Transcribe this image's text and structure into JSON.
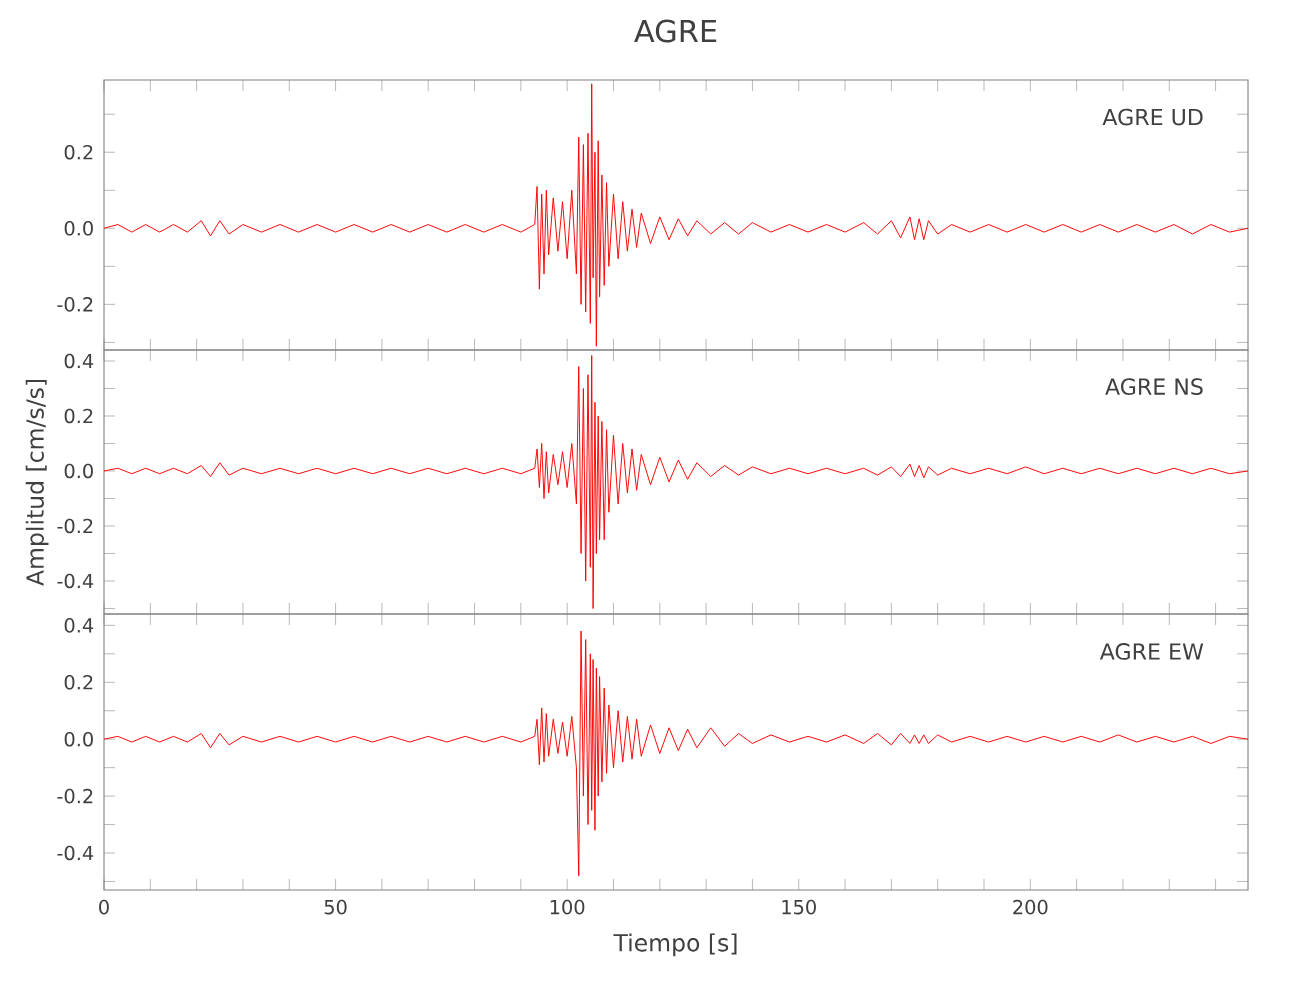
{
  "chart_data": [
    {
      "type": "line",
      "title": "AGRE",
      "annotations": [
        "AGRE UD"
      ],
      "tick_labels": "y",
      "xlim": [
        0,
        247
      ],
      "ylim": [
        -0.32,
        0.39
      ],
      "xticks": [
        0,
        {
          "value": 10,
          "label": null
        },
        {
          "value": 20,
          "label": null
        },
        {
          "value": 30,
          "label": null
        },
        {
          "value": 40,
          "label": null
        },
        50,
        {
          "value": 60,
          "label": null
        },
        {
          "value": 70,
          "label": null
        },
        {
          "value": 80,
          "label": null
        },
        {
          "value": 90,
          "label": null
        },
        100,
        {
          "value": 110,
          "label": null
        },
        {
          "value": 120,
          "label": null
        },
        {
          "value": 130,
          "label": null
        },
        {
          "value": 140,
          "label": null
        },
        150,
        {
          "value": 160,
          "label": null
        },
        {
          "value": 170,
          "label": null
        },
        {
          "value": 180,
          "label": null
        },
        {
          "value": 190,
          "label": null
        },
        200,
        {
          "value": 210,
          "label": null
        },
        {
          "value": 220,
          "label": null
        },
        {
          "value": 230,
          "label": null
        },
        {
          "value": 240,
          "label": null
        }
      ],
      "yticks": [
        {
          "value": -0.3,
          "label": null
        },
        -0.2,
        {
          "value": -0.1,
          "label": null
        },
        {
          "value": 0,
          "label": "0.0"
        },
        {
          "value": 0.1,
          "label": null
        },
        0.2,
        {
          "value": 0.3,
          "label": null
        }
      ],
      "series": [
        {
          "color": "#ff0000",
          "x": [
            0,
            3,
            6,
            9,
            12,
            15,
            18,
            21,
            23,
            25,
            27,
            30,
            34,
            38,
            42,
            46,
            50,
            54,
            58,
            62,
            66,
            70,
            74,
            78,
            82,
            86,
            90,
            93,
            93.5,
            94,
            94.5,
            95,
            95.5,
            96,
            97,
            98,
            99,
            100,
            101,
            102,
            102.5,
            103,
            103.5,
            104,
            104.5,
            105,
            105.3,
            105.6,
            106,
            106.3,
            106.7,
            107,
            107.5,
            108,
            108.5,
            109,
            110,
            111,
            112,
            113,
            114,
            115,
            116,
            118,
            120,
            122,
            124,
            126,
            128,
            131,
            134,
            137,
            140,
            144,
            148,
            152,
            156,
            160,
            164,
            167,
            170,
            172,
            174,
            175,
            176,
            177,
            178,
            180,
            183,
            187,
            191,
            195,
            199,
            203,
            207,
            211,
            215,
            219,
            223,
            227,
            231,
            235,
            239,
            243,
            247
          ],
          "values": [
            0,
            0.01,
            -0.01,
            0.01,
            -0.01,
            0.01,
            -0.01,
            0.02,
            -0.02,
            0.02,
            -0.015,
            0.01,
            -0.01,
            0.01,
            -0.01,
            0.01,
            -0.01,
            0.01,
            -0.01,
            0.01,
            -0.01,
            0.01,
            -0.01,
            0.01,
            -0.01,
            0.01,
            -0.01,
            0.01,
            0.11,
            -0.16,
            0.09,
            -0.12,
            0.1,
            -0.07,
            0.08,
            -0.06,
            0.07,
            -0.08,
            0.1,
            -0.12,
            0.24,
            -0.2,
            0.22,
            -0.22,
            0.25,
            -0.25,
            0.38,
            -0.13,
            0.2,
            -0.31,
            0.23,
            -0.18,
            0.14,
            -0.15,
            0.12,
            -0.1,
            0.09,
            -0.08,
            0.07,
            -0.06,
            0.05,
            -0.05,
            0.04,
            -0.04,
            0.03,
            -0.03,
            0.025,
            -0.02,
            0.02,
            -0.015,
            0.015,
            -0.015,
            0.015,
            -0.01,
            0.01,
            -0.01,
            0.01,
            -0.01,
            0.015,
            -0.015,
            0.02,
            -0.025,
            0.03,
            -0.03,
            0.025,
            -0.03,
            0.02,
            -0.015,
            0.01,
            -0.01,
            0.01,
            -0.01,
            0.01,
            -0.01,
            0.01,
            -0.01,
            0.01,
            -0.01,
            0.01,
            -0.01,
            0.01,
            -0.015,
            0.01,
            -0.01,
            0
          ]
        }
      ]
    },
    {
      "type": "line",
      "ylabel": "Amplitud [cm/s/s]",
      "annotations": [
        "AGRE NS"
      ],
      "tick_labels": "y",
      "xlim": [
        0,
        247
      ],
      "ylim": [
        -0.52,
        0.44
      ],
      "xticks": [
        0,
        {
          "value": 10,
          "label": null
        },
        {
          "value": 20,
          "label": null
        },
        {
          "value": 30,
          "label": null
        },
        {
          "value": 40,
          "label": null
        },
        50,
        {
          "value": 60,
          "label": null
        },
        {
          "value": 70,
          "label": null
        },
        {
          "value": 80,
          "label": null
        },
        {
          "value": 90,
          "label": null
        },
        100,
        {
          "value": 110,
          "label": null
        },
        {
          "value": 120,
          "label": null
        },
        {
          "value": 130,
          "label": null
        },
        {
          "value": 140,
          "label": null
        },
        150,
        {
          "value": 160,
          "label": null
        },
        {
          "value": 170,
          "label": null
        },
        {
          "value": 180,
          "label": null
        },
        {
          "value": 190,
          "label": null
        },
        200,
        {
          "value": 210,
          "label": null
        },
        {
          "value": 220,
          "label": null
        },
        {
          "value": 230,
          "label": null
        },
        {
          "value": 240,
          "label": null
        }
      ],
      "yticks": [
        {
          "value": -0.5,
          "label": null
        },
        -0.4,
        {
          "value": -0.3,
          "label": null
        },
        -0.2,
        {
          "value": -0.1,
          "label": null
        },
        {
          "value": 0,
          "label": "0.0"
        },
        {
          "value": 0.1,
          "label": null
        },
        0.2,
        {
          "value": 0.3,
          "label": null
        },
        0.4
      ],
      "series": [
        {
          "color": "#ff0000",
          "x": [
            0,
            3,
            6,
            9,
            12,
            15,
            18,
            21,
            23,
            25,
            27,
            30,
            34,
            38,
            42,
            46,
            50,
            54,
            58,
            62,
            66,
            70,
            74,
            78,
            82,
            86,
            90,
            93,
            93.5,
            94,
            94.5,
            95,
            95.5,
            96,
            97,
            98,
            99,
            100,
            101,
            102,
            102.5,
            103,
            103.5,
            104,
            104.5,
            105,
            105.3,
            105.6,
            106,
            106.3,
            106.7,
            107,
            107.5,
            108,
            108.5,
            109,
            110,
            111,
            112,
            113,
            114,
            115,
            116,
            118,
            120,
            122,
            124,
            126,
            128,
            131,
            134,
            137,
            140,
            144,
            148,
            152,
            156,
            160,
            164,
            167,
            170,
            172,
            174,
            175,
            176,
            177,
            178,
            180,
            183,
            187,
            191,
            195,
            199,
            203,
            207,
            211,
            215,
            219,
            223,
            227,
            231,
            235,
            239,
            243,
            247
          ],
          "values": [
            0,
            0.01,
            -0.01,
            0.01,
            -0.01,
            0.01,
            -0.01,
            0.02,
            -0.02,
            0.03,
            -0.015,
            0.01,
            -0.01,
            0.01,
            -0.01,
            0.01,
            -0.01,
            0.01,
            -0.01,
            0.01,
            -0.01,
            0.01,
            -0.01,
            0.01,
            -0.01,
            0.01,
            -0.01,
            0.01,
            0.08,
            -0.06,
            0.1,
            -0.1,
            0.07,
            -0.08,
            0.06,
            -0.05,
            0.07,
            -0.06,
            0.1,
            -0.12,
            0.38,
            -0.3,
            0.3,
            -0.4,
            0.35,
            -0.35,
            0.42,
            -0.5,
            0.25,
            -0.3,
            0.2,
            -0.25,
            0.18,
            -0.25,
            0.15,
            -0.15,
            0.13,
            -0.12,
            0.1,
            -0.08,
            0.08,
            -0.07,
            0.06,
            -0.05,
            0.05,
            -0.04,
            0.04,
            -0.03,
            0.03,
            -0.02,
            0.02,
            -0.015,
            0.015,
            -0.01,
            0.01,
            -0.01,
            0.01,
            -0.01,
            0.01,
            -0.015,
            0.015,
            -0.02,
            0.025,
            -0.02,
            0.02,
            -0.025,
            0.015,
            -0.015,
            0.01,
            -0.01,
            0.01,
            -0.01,
            0.015,
            -0.01,
            0.01,
            -0.01,
            0.01,
            -0.01,
            0.01,
            -0.01,
            0.01,
            -0.01,
            0.01,
            -0.01,
            0
          ]
        }
      ]
    },
    {
      "type": "line",
      "xlabel": "Tiempo [s]",
      "annotations": [
        "AGRE EW"
      ],
      "xlim": [
        0,
        247
      ],
      "ylim": [
        -0.53,
        0.44
      ],
      "xticks": [
        0,
        {
          "value": 10,
          "label": null
        },
        {
          "value": 20,
          "label": null
        },
        {
          "value": 30,
          "label": null
        },
        {
          "value": 40,
          "label": null
        },
        50,
        {
          "value": 60,
          "label": null
        },
        {
          "value": 70,
          "label": null
        },
        {
          "value": 80,
          "label": null
        },
        {
          "value": 90,
          "label": null
        },
        100,
        {
          "value": 110,
          "label": null
        },
        {
          "value": 120,
          "label": null
        },
        {
          "value": 130,
          "label": null
        },
        {
          "value": 140,
          "label": null
        },
        150,
        {
          "value": 160,
          "label": null
        },
        {
          "value": 170,
          "label": null
        },
        {
          "value": 180,
          "label": null
        },
        {
          "value": 190,
          "label": null
        },
        200,
        {
          "value": 210,
          "label": null
        },
        {
          "value": 220,
          "label": null
        },
        {
          "value": 230,
          "label": null
        },
        {
          "value": 240,
          "label": null
        }
      ],
      "yticks": [
        {
          "value": -0.5,
          "label": null
        },
        -0.4,
        {
          "value": -0.3,
          "label": null
        },
        -0.2,
        {
          "value": -0.1,
          "label": null
        },
        {
          "value": 0,
          "label": "0.0"
        },
        {
          "value": 0.1,
          "label": null
        },
        0.2,
        {
          "value": 0.3,
          "label": null
        },
        0.4
      ],
      "series": [
        {
          "color": "#ff0000",
          "x": [
            0,
            3,
            6,
            9,
            12,
            15,
            18,
            21,
            23,
            25,
            27,
            30,
            34,
            38,
            42,
            46,
            50,
            54,
            58,
            62,
            66,
            70,
            74,
            78,
            82,
            86,
            90,
            93,
            93.5,
            94,
            94.5,
            95,
            95.5,
            96,
            97,
            98,
            99,
            100,
            101,
            102,
            102.5,
            103,
            103.5,
            104,
            104.5,
            105,
            105.3,
            105.6,
            106,
            106.3,
            106.7,
            107,
            107.5,
            108,
            108.5,
            109,
            110,
            111,
            112,
            113,
            114,
            115,
            116,
            118,
            120,
            122,
            124,
            126,
            128,
            131,
            134,
            137,
            140,
            144,
            148,
            152,
            156,
            160,
            164,
            167,
            170,
            172,
            174,
            175,
            176,
            177,
            178,
            180,
            183,
            187,
            191,
            195,
            199,
            203,
            207,
            211,
            215,
            219,
            223,
            227,
            231,
            235,
            239,
            243,
            247
          ],
          "values": [
            0,
            0.01,
            -0.01,
            0.01,
            -0.01,
            0.01,
            -0.01,
            0.02,
            -0.03,
            0.02,
            -0.02,
            0.01,
            -0.01,
            0.01,
            -0.01,
            0.01,
            -0.01,
            0.01,
            -0.01,
            0.01,
            -0.01,
            0.01,
            -0.01,
            0.01,
            -0.01,
            0.01,
            -0.01,
            0.01,
            0.07,
            -0.09,
            0.11,
            -0.08,
            0.09,
            -0.06,
            0.07,
            -0.05,
            0.06,
            -0.06,
            0.08,
            -0.1,
            -0.48,
            0.38,
            -0.2,
            0.35,
            -0.3,
            0.3,
            -0.25,
            0.28,
            -0.32,
            0.25,
            -0.2,
            0.22,
            -0.15,
            0.18,
            -0.12,
            0.12,
            -0.1,
            0.1,
            -0.08,
            0.08,
            -0.07,
            0.07,
            -0.06,
            0.05,
            -0.05,
            0.04,
            -0.04,
            0.035,
            -0.03,
            0.04,
            -0.025,
            0.02,
            -0.015,
            0.015,
            -0.01,
            0.01,
            -0.01,
            0.015,
            -0.015,
            0.02,
            -0.02,
            0.02,
            -0.015,
            0.015,
            -0.015,
            0.015,
            -0.015,
            0.015,
            -0.01,
            0.01,
            -0.01,
            0.01,
            -0.01,
            0.01,
            -0.01,
            0.01,
            -0.01,
            0.015,
            -0.01,
            0.01,
            -0.01,
            0.01,
            -0.015,
            0.01,
            0
          ]
        }
      ]
    }
  ]
}
